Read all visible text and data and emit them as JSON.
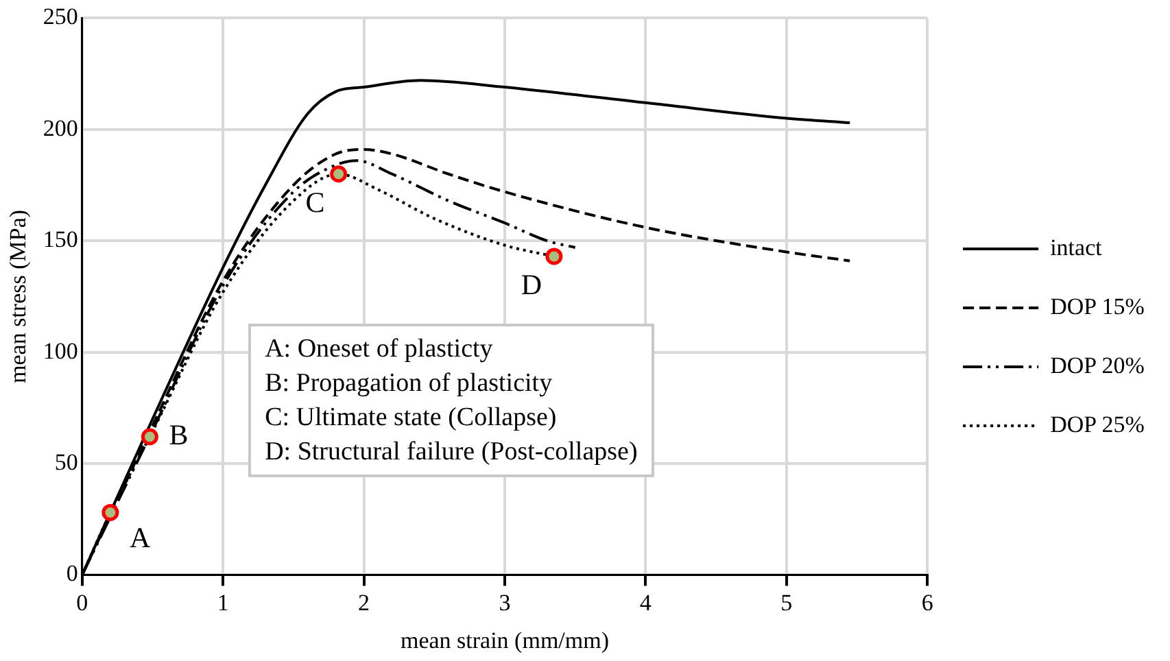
{
  "chart_data": {
    "type": "line",
    "xlabel": "mean strain (mm/mm)",
    "ylabel": "mean stress (MPa)",
    "xlim": [
      0,
      6
    ],
    "xticks": [
      0,
      1,
      2,
      3,
      4,
      5,
      6
    ],
    "ylim": [
      0,
      250
    ],
    "yticks": [
      0,
      50,
      100,
      150,
      200,
      250
    ],
    "grid": true,
    "legend": "right",
    "marker": "none",
    "series": [
      {
        "name": "intact",
        "color": "#000000",
        "line_style": "solid",
        "x": [
          0,
          0.5,
          1,
          1.3,
          1.6,
          1.8,
          2.0,
          2.4,
          3,
          4,
          5,
          5.45
        ],
        "values": [
          0,
          70,
          138,
          175,
          207,
          217,
          219,
          222,
          219,
          212,
          205,
          203
        ]
      },
      {
        "name": "DOP 15%",
        "color": "#000000",
        "line_style": "dashed",
        "x": [
          0,
          0.5,
          1,
          1.5,
          1.8,
          2.0,
          2.2,
          2.6,
          3,
          4,
          5,
          5.45
        ],
        "values": [
          0,
          67,
          132,
          175,
          189,
          191,
          189,
          180,
          172,
          156,
          145,
          141
        ]
      },
      {
        "name": "DOP 20%",
        "color": "#000000",
        "line_style": "dashdot",
        "x": [
          0,
          0.5,
          1,
          1.5,
          1.8,
          1.95,
          2.2,
          2.6,
          3,
          3.3,
          3.5
        ],
        "values": [
          0,
          65,
          130,
          172,
          184,
          186,
          180,
          168,
          158,
          150,
          147
        ]
      },
      {
        "name": "DOP 25%",
        "color": "#000000",
        "line_style": "dotted",
        "x": [
          0,
          0.2,
          0.48,
          1,
          1.5,
          1.82,
          2.1,
          2.5,
          3,
          3.35
        ],
        "values": [
          0,
          28,
          62,
          127,
          168,
          180,
          173,
          160,
          148,
          143
        ]
      },
      {
        "type": "scatter",
        "color": "#ff0000",
        "marker": "circle",
        "x": [
          0.2,
          0.48,
          1.82,
          3.35
        ],
        "values": [
          28,
          62,
          180,
          143
        ]
      }
    ],
    "annotations": [
      {
        "text": "A",
        "x": 0.2,
        "y": 28
      },
      {
        "text": "B",
        "x": 0.48,
        "y": 62
      },
      {
        "text": "C",
        "x": 1.82,
        "y": 180
      },
      {
        "text": "D",
        "x": 3.35,
        "y": 143
      },
      "A: Oneset of plasticty",
      "B: Propagation of plasticity",
      "C: Ultimate state (Collapse)",
      "D: Structural failure (Post-collapse)"
    ]
  }
}
